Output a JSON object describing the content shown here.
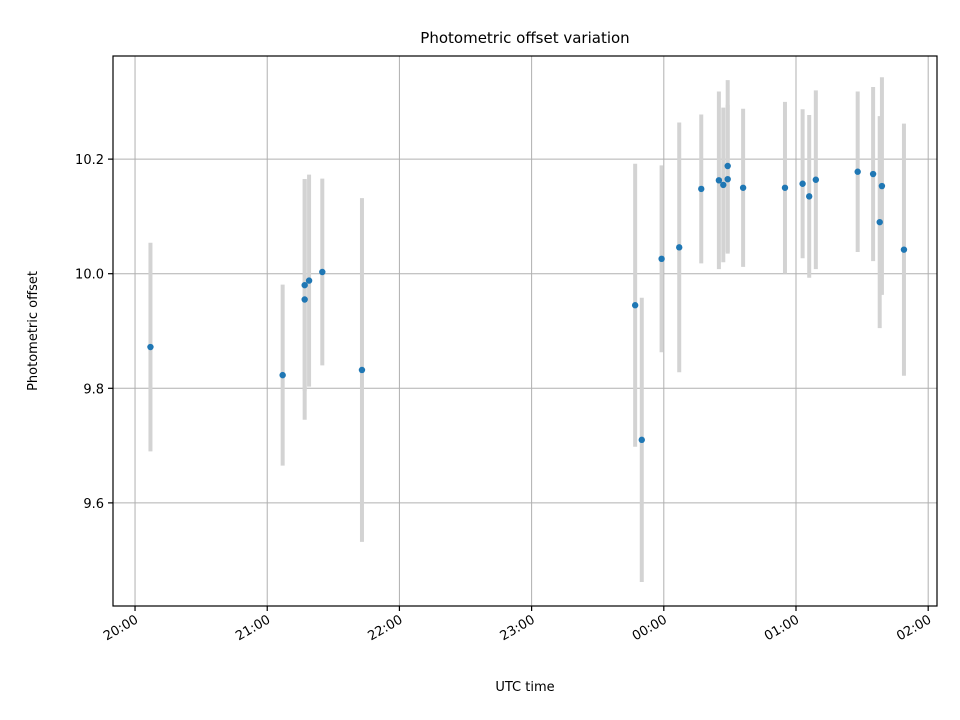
{
  "chart_data": {
    "type": "scatter",
    "title": "Photometric offset variation",
    "xlabel": "UTC time",
    "ylabel": "Photometric offset",
    "x_axis_type": "time",
    "xlim": [
      "19:50",
      "02:04"
    ],
    "ylim": [
      9.42,
      10.38
    ],
    "grid": true,
    "legend": "none",
    "x_ticks": [
      "20:00",
      "21:00",
      "22:00",
      "23:00",
      "00:00",
      "01:00",
      "02:00"
    ],
    "y_ticks": [
      9.6,
      9.8,
      10.0,
      10.2
    ],
    "colors": {
      "point": "#1f77b4",
      "error_bar": "#d3d3d3",
      "grid": "#b0b0b0"
    },
    "points": [
      {
        "time": "20:07",
        "y": 9.872,
        "err": 0.182
      },
      {
        "time": "21:07",
        "y": 9.823,
        "err": 0.158
      },
      {
        "time": "21:17",
        "y": 9.955,
        "err": 0.21
      },
      {
        "time": "21:17",
        "y": 9.98,
        "err": 0.185
      },
      {
        "time": "21:19",
        "y": 9.988,
        "err": 0.185
      },
      {
        "time": "21:25",
        "y": 10.003,
        "err": 0.163
      },
      {
        "time": "21:43",
        "y": 9.832,
        "err": 0.3
      },
      {
        "time": "23:47",
        "y": 9.945,
        "err": 0.247
      },
      {
        "time": "23:50",
        "y": 9.71,
        "err": 0.248
      },
      {
        "time": "23:59",
        "y": 10.026,
        "err": 0.163
      },
      {
        "time": "00:07",
        "y": 10.046,
        "err": 0.218
      },
      {
        "time": "00:17",
        "y": 10.148,
        "err": 0.13
      },
      {
        "time": "00:25",
        "y": 10.163,
        "err": 0.155
      },
      {
        "time": "00:27",
        "y": 10.155,
        "err": 0.135
      },
      {
        "time": "00:29",
        "y": 10.188,
        "err": 0.15
      },
      {
        "time": "00:29",
        "y": 10.165,
        "err": 0.13
      },
      {
        "time": "00:36",
        "y": 10.15,
        "err": 0.138
      },
      {
        "time": "00:55",
        "y": 10.15,
        "err": 0.15
      },
      {
        "time": "01:03",
        "y": 10.157,
        "err": 0.13
      },
      {
        "time": "01:06",
        "y": 10.135,
        "err": 0.142
      },
      {
        "time": "01:09",
        "y": 10.164,
        "err": 0.156
      },
      {
        "time": "01:28",
        "y": 10.178,
        "err": 0.14
      },
      {
        "time": "01:35",
        "y": 10.174,
        "err": 0.152
      },
      {
        "time": "01:38",
        "y": 10.09,
        "err": 0.185
      },
      {
        "time": "01:39",
        "y": 10.153,
        "err": 0.19
      },
      {
        "time": "01:49",
        "y": 10.042,
        "err": 0.22
      }
    ]
  }
}
